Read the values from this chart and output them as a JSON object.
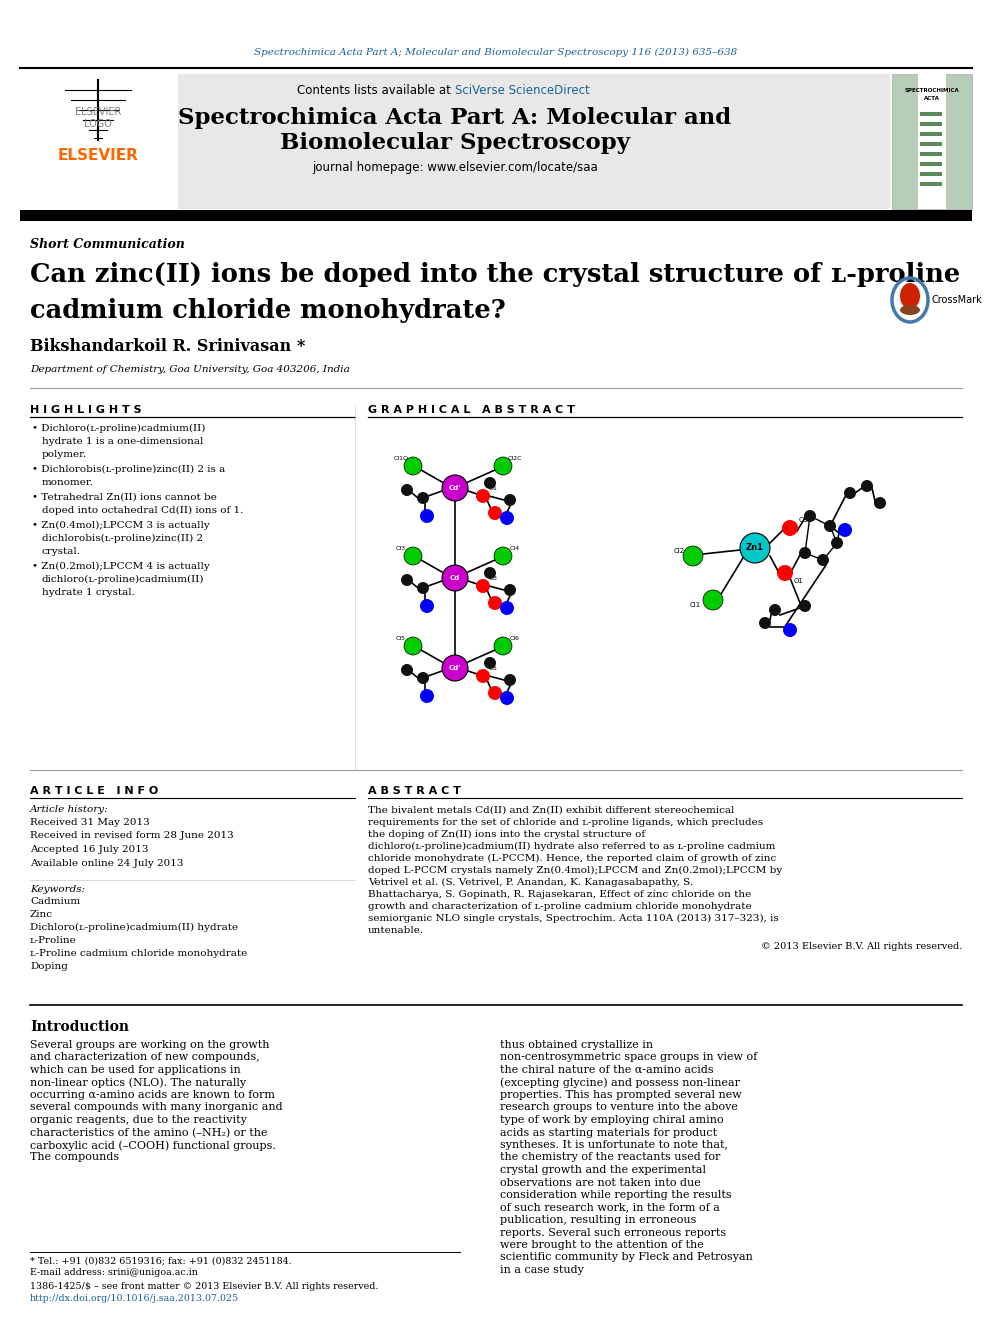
{
  "journal_header_text": "Spectrochimica Acta Part A; Molecular and Biomolecular Spectroscopy 116 (2013) 635–638",
  "journal_header_color": "#1a6496",
  "contents_text": "Contents lists available at ",
  "sciverse_text": "SciVerse ScienceDirect",
  "sciverse_color": "#1a6496",
  "journal_title_line1": "Spectrochimica Acta Part A: Molecular and",
  "journal_title_line2": "Biomolecular Spectroscopy",
  "journal_homepage_text": "journal homepage: www.elsevier.com/locate/saa",
  "section_label": "Short Communication",
  "article_title_line1": "Can zinc(II) ions be doped into the crystal structure of ʟ-proline",
  "article_title_line2": "cadmium chloride monohydrate?",
  "author_name": "Bikshandarkoil R. Srinivasan *",
  "affiliation": "Department of Chemistry, Goa University, Goa 403206, India",
  "highlights_title": "H I G H L I G H T S",
  "graphical_abstract_title": "G R A P H I C A L   A B S T R A C T",
  "article_info_title": "A R T I C L E   I N F O",
  "article_history_label": "Article history:",
  "received_date": "Received 31 May 2013",
  "revised_date": "Received in revised form 28 June 2013",
  "accepted_date": "Accepted 16 July 2013",
  "online_date": "Available online 24 July 2013",
  "keywords_label": "Keywords:",
  "keywords": [
    "Cadmium",
    "Zinc",
    "Dichloro(ʟ-proline)cadmium(II) hydrate",
    "ʟ-Proline",
    "ʟ-Proline cadmium chloride monohydrate",
    "Doping"
  ],
  "abstract_title": "A B S T R A C T",
  "abstract_text": "The bivalent metals Cd(II) and Zn(II) exhibit different stereochemical requirements for the set of chloride and ʟ-proline ligands, which precludes the doping of Zn(II) ions into the crystal structure of dichloro(ʟ-proline)cadmium(II) hydrate also referred to as ʟ-proline cadmium chloride monohydrate (L-PCCM). Hence, the reported claim of growth of zinc doped L-PCCM crystals namely Zn(0.4mol);LPCCM and Zn(0.2mol);LPCCM by Vetrivel et al. (S. Vetrivel, P. Anandan, K. Kanagasabapathy, S. Bhattacharya, S. Gopinath, R. Rajasekaran, Effect of zinc chloride on the growth and characterization of ʟ-proline cadmium chloride monohydrate semiorganic NLO single crystals, Spectrochim. Acta 110A (2013) 317–323), is untenable.",
  "copyright_text": "© 2013 Elsevier B.V. All rights reserved.",
  "intro_title": "Introduction",
  "intro_text_left": "Several groups are working on the growth and characterization of new compounds, which can be used for applications in non-linear optics (NLO). The naturally occurring α-amino acids are known to form several compounds with many inorganic and organic reagents, due to the reactivity characteristics of the amino (–NH₂) or the carboxylic acid (–COOH) functional groups. The compounds",
  "intro_text_right": "thus obtained crystallize in non-centrosymmetric space groups in view of the chiral nature of the α-amino acids (excepting glycine) and possess non-linear properties. This has prompted several new research groups to venture into the above type of work by employing chiral amino acids as starting materials for product syntheses. It is unfortunate to note that, the chemistry of the reactants used for crystal growth and the experimental observations are not taken into due consideration while reporting the results of such research work, in the form of a publication, resulting in erroneous reports. Several such erroneous reports were brought to the attention of the scientific community by Fleck and Petrosyan in a case study",
  "footnote_tel": "* Tel.: +91 (0)832 6519316; fax: +91 (0)832 2451184.",
  "footnote_email": "E-mail address: srini@unigoa.ac.in",
  "issn_text": "1386-1425/$ – see front matter © 2013 Elsevier B.V. All rights reserved.",
  "doi_text": "http://dx.doi.org/10.1016/j.saa.2013.07.025",
  "header_bg": "#e8e8e8",
  "elsevier_color": "#ff6600",
  "highlight_bullets": [
    [
      "Dichloro(ʟ-proline)cadmium(II)",
      "hydrate 1 is a one-dimensional",
      "polymer."
    ],
    [
      "Dichlorobis(ʟ-proline)zinc(II) 2 is a",
      "monomer."
    ],
    [
      "Tetrahedral Zn(II) ions cannot be",
      "doped into octahedral Cd(II) ions of 1."
    ],
    [
      "Zn(0.4mol);LPCCM 3 is actually",
      "dichlorobis(ʟ-proline)zinc(II) 2",
      "crystal."
    ],
    [
      "Zn(0.2mol);LPCCM 4 is actually",
      "dichloro(ʟ-proline)cadmium(II)",
      "hydrate 1 crystal."
    ]
  ]
}
